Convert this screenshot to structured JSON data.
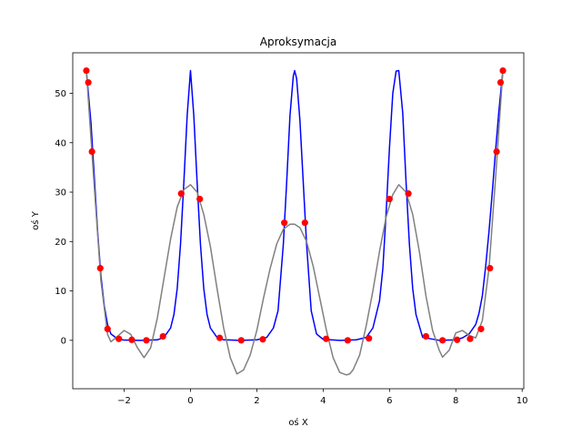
{
  "chart_data": {
    "type": "line",
    "title": "Aproksymacja",
    "xlabel": "oś X",
    "ylabel": "oś Y",
    "xlim": [
      -3.55,
      10.05
    ],
    "ylim": [
      -9.8,
      58.2
    ],
    "x_ticks": [
      -2,
      0,
      2,
      4,
      6,
      8,
      10
    ],
    "x_tick_labels": [
      "−2",
      "0",
      "2",
      "4",
      "6",
      "8",
      "10"
    ],
    "y_ticks": [
      0,
      10,
      20,
      30,
      40,
      50
    ],
    "y_tick_labels": [
      "0",
      "10",
      "20",
      "30",
      "40",
      "50"
    ],
    "grid": false,
    "legend": "none",
    "series": [
      {
        "kind": "line",
        "color": "#0000ff",
        "x": [
          -3.14,
          -3.0,
          -2.9,
          -2.8,
          -2.7,
          -2.6,
          -2.5,
          -2.4,
          -2.2,
          -2.0,
          -1.5,
          -1.0,
          -0.8,
          -0.6,
          -0.5,
          -0.4,
          -0.3,
          -0.2,
          -0.1,
          0.0,
          0.1,
          0.2,
          0.3,
          0.4,
          0.5,
          0.6,
          0.8,
          1.0,
          1.5,
          2.0,
          2.3,
          2.5,
          2.64,
          2.8,
          2.9,
          3.0,
          3.1,
          3.14,
          3.2,
          3.3,
          3.4,
          3.5,
          3.64,
          3.8,
          4.0,
          4.5,
          5.0,
          5.3,
          5.5,
          5.7,
          5.8,
          5.9,
          6.0,
          6.1,
          6.2,
          6.28,
          6.4,
          6.5,
          6.6,
          6.7,
          6.8,
          7.0,
          7.5,
          8.0,
          8.2,
          8.4,
          8.6,
          8.7,
          8.8,
          8.9,
          9.0,
          9.1,
          9.2,
          9.3,
          9.42
        ],
        "y": [
          54.6,
          44.0,
          33.0,
          22.0,
          13.0,
          7.0,
          3.2,
          1.3,
          0.3,
          0.05,
          0.0,
          0.1,
          0.6,
          2.5,
          5.2,
          10.5,
          19.5,
          32.0,
          45.5,
          54.6,
          45.5,
          32.0,
          19.5,
          10.5,
          5.2,
          2.5,
          0.6,
          0.1,
          0.0,
          0.1,
          0.6,
          2.5,
          6.0,
          19.5,
          32.0,
          45.5,
          53.5,
          54.6,
          53.0,
          44.5,
          32.0,
          19.5,
          6.0,
          1.3,
          0.2,
          0.0,
          0.1,
          0.6,
          2.5,
          8.0,
          14.5,
          26.0,
          39.0,
          50.0,
          54.5,
          54.6,
          46.0,
          32.0,
          19.5,
          10.5,
          5.2,
          0.6,
          0.0,
          0.1,
          0.5,
          1.3,
          3.2,
          5.5,
          9.0,
          15.0,
          22.0,
          30.0,
          38.5,
          46.5,
          54.6
        ]
      },
      {
        "kind": "line",
        "color": "#808080",
        "x": [
          -3.14,
          -2.9,
          -2.7,
          -2.5,
          -2.4,
          -2.2,
          -2.0,
          -1.8,
          -1.6,
          -1.4,
          -1.2,
          -1.0,
          -0.8,
          -0.6,
          -0.4,
          -0.2,
          0.0,
          0.2,
          0.4,
          0.6,
          0.8,
          1.0,
          1.2,
          1.4,
          1.6,
          1.8,
          2.0,
          2.2,
          2.4,
          2.6,
          2.8,
          3.0,
          3.14,
          3.3,
          3.5,
          3.7,
          3.9,
          4.1,
          4.3,
          4.5,
          4.7,
          4.8,
          4.9,
          5.1,
          5.3,
          5.5,
          5.7,
          5.9,
          6.1,
          6.28,
          6.5,
          6.7,
          6.9,
          7.1,
          7.3,
          7.5,
          7.6,
          7.8,
          8.0,
          8.2,
          8.4,
          8.6,
          8.8,
          9.0,
          9.2,
          9.42
        ],
        "y": [
          54.6,
          31.0,
          12.0,
          1.2,
          -0.3,
          0.8,
          2.0,
          1.2,
          -1.5,
          -3.5,
          -1.5,
          4.5,
          12.5,
          20.5,
          27.0,
          30.5,
          31.5,
          30.0,
          25.5,
          19.0,
          10.5,
          2.5,
          -3.5,
          -6.8,
          -6.0,
          -3.0,
          2.0,
          8.5,
          14.5,
          19.5,
          22.5,
          23.5,
          23.5,
          22.8,
          20.0,
          15.0,
          8.5,
          2.0,
          -3.5,
          -6.5,
          -7.0,
          -6.8,
          -6.0,
          -3.0,
          3.0,
          10.0,
          18.0,
          25.0,
          29.5,
          31.5,
          30.0,
          25.5,
          18.0,
          9.0,
          2.0,
          -2.0,
          -3.4,
          -2.0,
          1.5,
          2.0,
          1.0,
          0.5,
          4.0,
          14.5,
          33.0,
          54.6
        ]
      },
      {
        "kind": "scatter",
        "color": "#ff0000",
        "x": [
          -3.14,
          -3.08,
          -2.97,
          -2.72,
          -2.5,
          -2.16,
          -1.77,
          -1.33,
          -0.83,
          -0.28,
          0.28,
          0.88,
          1.53,
          2.18,
          2.83,
          3.45,
          4.09,
          4.74,
          5.38,
          6.0,
          6.57,
          7.1,
          7.6,
          8.04,
          8.43,
          8.76,
          9.03,
          9.23,
          9.35,
          9.42
        ],
        "y": [
          54.6,
          52.2,
          38.2,
          14.6,
          2.3,
          0.3,
          0.1,
          0.0,
          0.8,
          29.7,
          28.6,
          0.5,
          0.0,
          0.2,
          23.8,
          23.8,
          0.3,
          0.0,
          0.4,
          28.6,
          29.7,
          0.8,
          0.0,
          0.1,
          0.3,
          2.3,
          14.6,
          38.2,
          52.2,
          54.6
        ]
      }
    ]
  }
}
